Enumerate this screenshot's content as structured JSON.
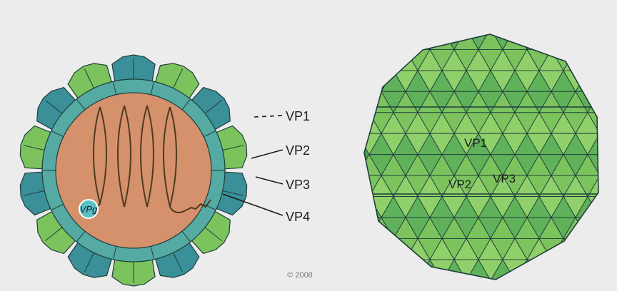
{
  "cross_section": {
    "labels": {
      "vp1": "VP1",
      "vp2": "VP2",
      "vp3": "VP3",
      "vp4": "VP4",
      "vpg": "VPg"
    }
  },
  "capsid_exterior": {
    "labels": {
      "vp1": "VP1",
      "vp2": "VP2",
      "vp3": "VP3"
    }
  },
  "copyright": "© 2008",
  "colors": {
    "background": "#ececec",
    "core": "#d5916c",
    "inner_ring": "#55aaa4",
    "teal": "#3a8f98",
    "green_dark": "#4f9e48",
    "green_light": "#7cc35e",
    "outline": "#1f3d3a",
    "rna": "#4e3b1f",
    "label": "#1d1d1d",
    "vpg_fill": "#58c1c7"
  }
}
